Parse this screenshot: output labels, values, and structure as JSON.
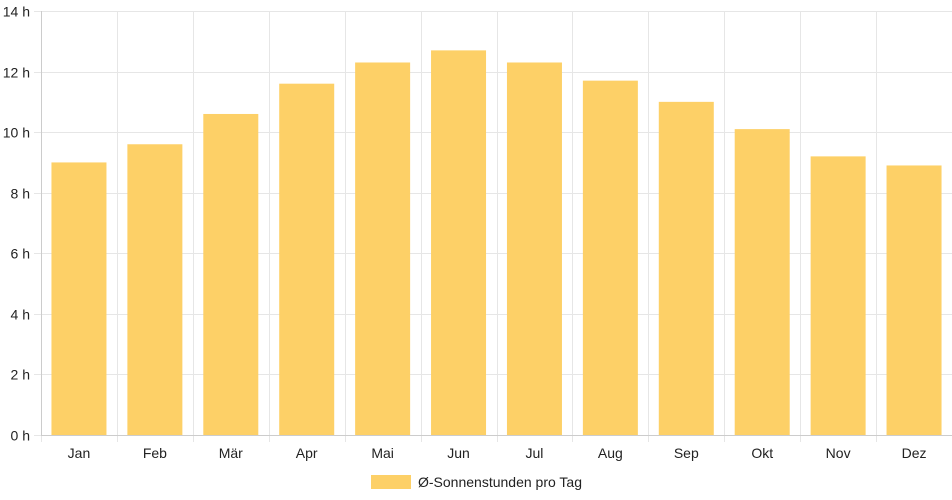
{
  "chart_data": {
    "type": "bar",
    "categories": [
      "Jan",
      "Feb",
      "Mär",
      "Apr",
      "Mai",
      "Jun",
      "Jul",
      "Aug",
      "Sep",
      "Okt",
      "Nov",
      "Dez"
    ],
    "series": [
      {
        "name": "Ø-Sonnenstunden pro Tag",
        "values": [
          9.0,
          9.6,
          10.6,
          11.6,
          12.3,
          12.7,
          12.3,
          11.7,
          11.0,
          10.1,
          9.2,
          8.9
        ],
        "color": "#FDD067"
      }
    ],
    "ylim": [
      0,
      14
    ],
    "yticks": [
      0,
      2,
      4,
      6,
      8,
      10,
      12,
      14
    ],
    "y_unit_suffix": " h",
    "ytick_labels": [
      "0 h",
      "2 h",
      "4 h",
      "6 h",
      "8 h",
      "10 h",
      "12 h",
      "14 h"
    ],
    "grid": true,
    "legend_position": "bottom",
    "colors": {
      "bar": "#FDD067",
      "grid": "#e6e6e6",
      "axis": "#cccccc",
      "text": "#222222"
    }
  }
}
